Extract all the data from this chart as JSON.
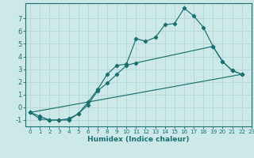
{
  "xlabel": "Humidex (Indice chaleur)",
  "bg_color": "#cde8e8",
  "grid_color": "#b8d8d8",
  "line_color": "#1a7070",
  "xlim": [
    -0.5,
    23
  ],
  "ylim": [
    -1.5,
    8.2
  ],
  "yticks": [
    -1,
    0,
    1,
    2,
    3,
    4,
    5,
    6,
    7
  ],
  "xticks": [
    0,
    1,
    2,
    3,
    4,
    5,
    6,
    7,
    8,
    9,
    10,
    11,
    12,
    13,
    14,
    15,
    16,
    17,
    18,
    19,
    20,
    21,
    22,
    23
  ],
  "line1_x": [
    0,
    1,
    2,
    3,
    4,
    5,
    6,
    7,
    8,
    9,
    10,
    11,
    12,
    13,
    14,
    15,
    16,
    17,
    18,
    19,
    20,
    21,
    22
  ],
  "line1_y": [
    -0.4,
    -0.9,
    -1.0,
    -1.0,
    -1.0,
    -0.5,
    0.4,
    1.4,
    2.6,
    3.3,
    3.4,
    5.4,
    5.2,
    5.5,
    6.5,
    6.6,
    7.8,
    7.2,
    6.3,
    4.8,
    3.6,
    2.9,
    2.6
  ],
  "line2_x": [
    0,
    1,
    2,
    3,
    4,
    5,
    6,
    7,
    8,
    9,
    10,
    11,
    19,
    20,
    21,
    22
  ],
  "line2_y": [
    -0.4,
    -0.7,
    -1.0,
    -1.0,
    -0.9,
    -0.5,
    0.2,
    1.3,
    1.9,
    2.6,
    3.3,
    3.5,
    4.8,
    3.6,
    2.9,
    2.6
  ],
  "line3_x": [
    0,
    22
  ],
  "line3_y": [
    -0.4,
    2.6
  ],
  "xlabel_fontsize": 6.5,
  "tick_fontsize_x": 5.2,
  "tick_fontsize_y": 6.0
}
